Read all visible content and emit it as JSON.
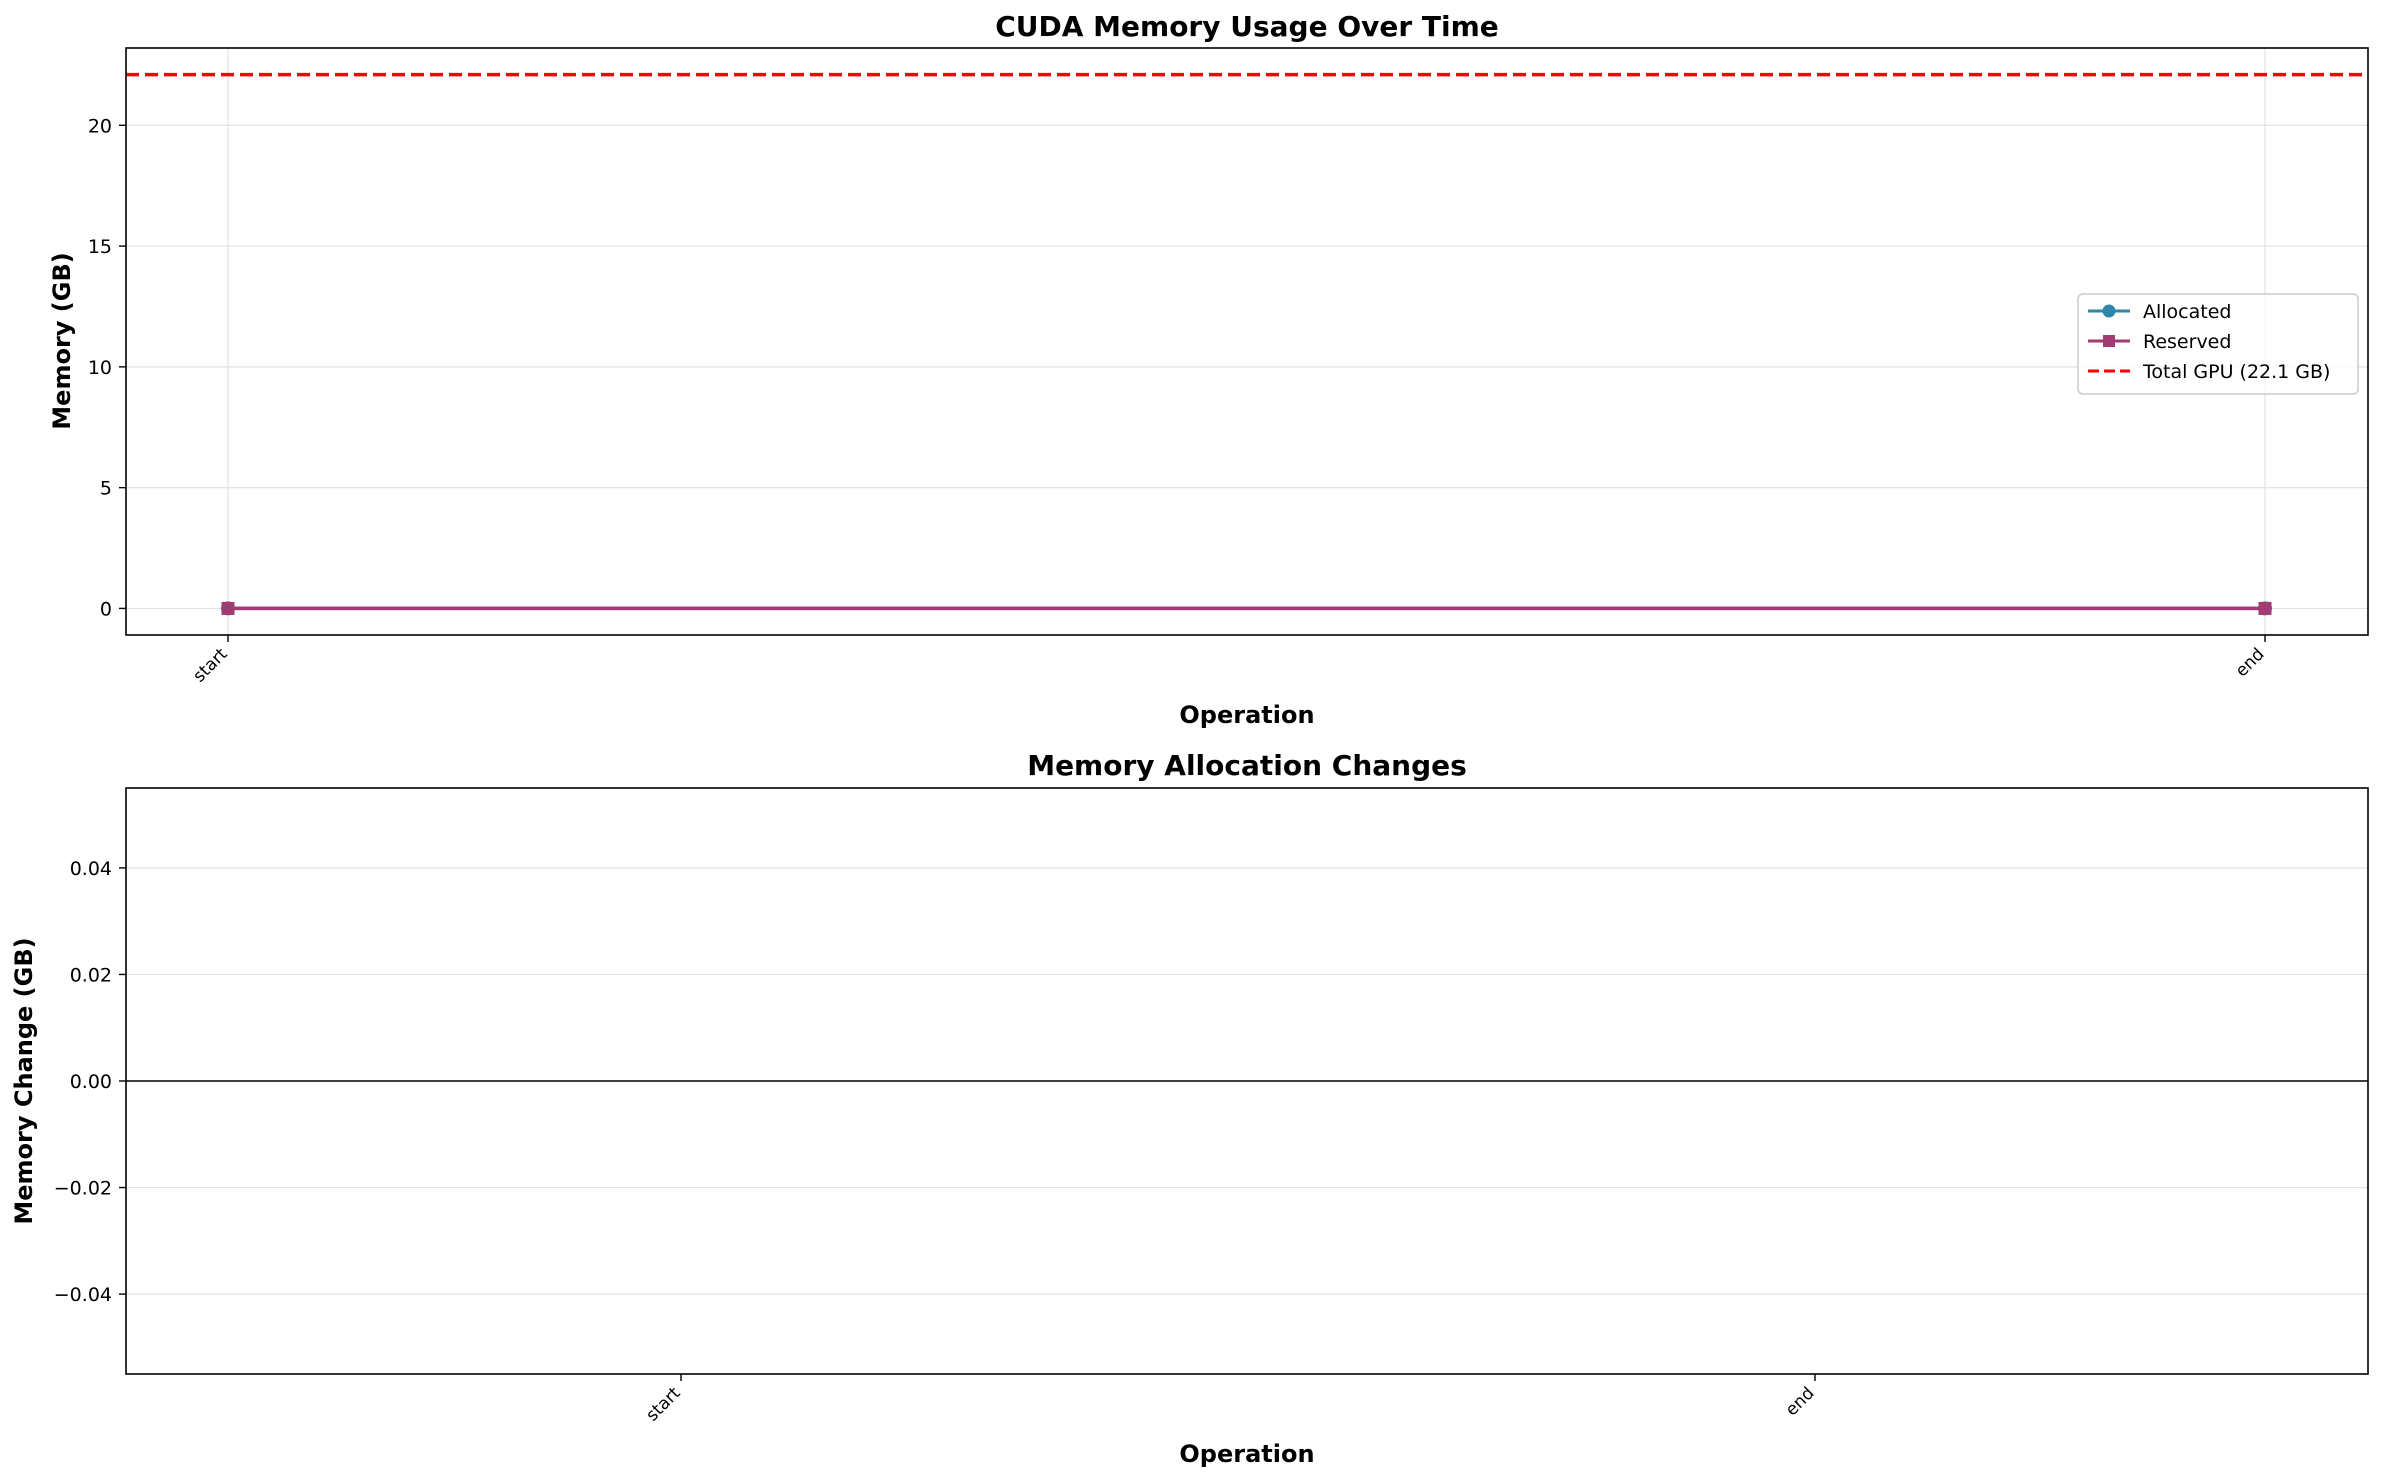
{
  "chart_data": [
    {
      "type": "line",
      "title": "CUDA Memory Usage Over Time",
      "xlabel": "Operation",
      "ylabel": "Memory (GB)",
      "categories": [
        "start",
        "end"
      ],
      "ylim": [
        -1.1,
        23.2
      ],
      "yticks": [
        "0",
        "5",
        "10",
        "15",
        "20"
      ],
      "ytick_values": [
        0,
        5,
        10,
        15,
        20
      ],
      "grid": true,
      "legend_position": "center-right",
      "series": [
        {
          "name": "Allocated",
          "values": [
            0,
            0
          ],
          "color": "#2e86ab",
          "marker": "circle"
        },
        {
          "name": "Reserved",
          "values": [
            0,
            0
          ],
          "color": "#a23b72",
          "marker": "square"
        }
      ],
      "hlines": [
        {
          "name": "Total GPU (22.1 GB)",
          "value": 22.1,
          "color": "#ff0000",
          "style": "dashed"
        }
      ]
    },
    {
      "type": "bar",
      "title": "Memory Allocation Changes",
      "xlabel": "Operation",
      "ylabel": "Memory Change (GB)",
      "categories": [
        "start",
        "end"
      ],
      "values": [
        0,
        0
      ],
      "ylim": [
        -0.055,
        0.055
      ],
      "yticks": [
        "−0.04",
        "−0.02",
        "0.00",
        "0.02",
        "0.04"
      ],
      "ytick_values": [
        -0.04,
        -0.02,
        0,
        0.02,
        0.04
      ],
      "grid": true,
      "zero_line_color": "#000000"
    }
  ]
}
